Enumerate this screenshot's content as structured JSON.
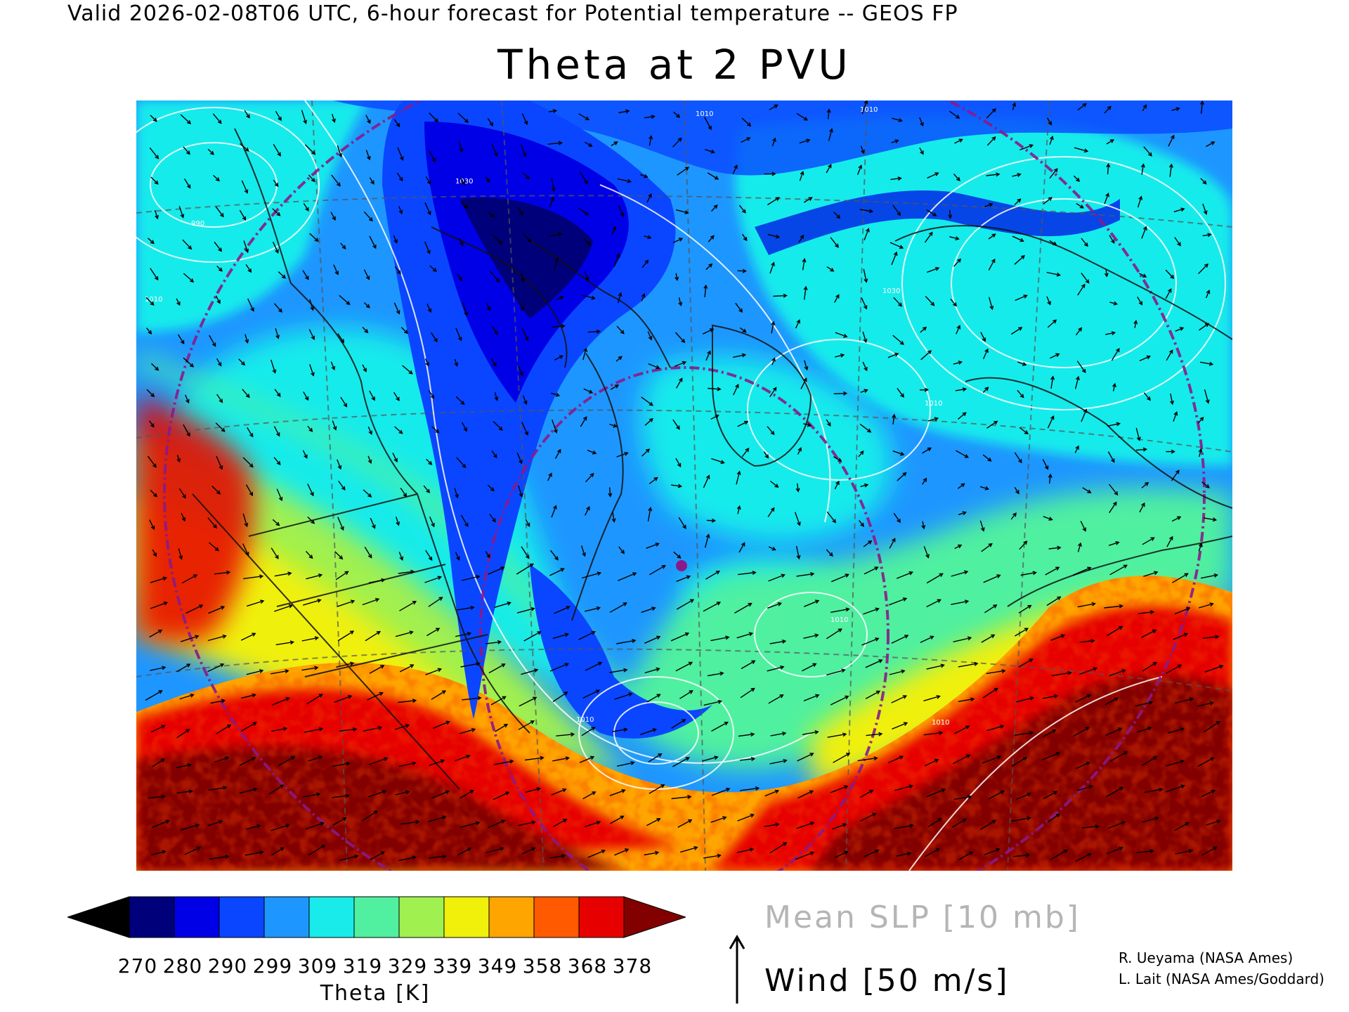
{
  "header": {
    "valid_line": "Valid 2026-02-08T06 UTC, 6-hour forecast for Potential temperature -- GEOS FP",
    "title": "Theta at 2 PVU"
  },
  "map": {
    "variable": "Theta",
    "projection_features": [
      "coastlines",
      "state-borders",
      "dashed-graticule",
      "dash-dot-purple-circles",
      "slp-isobars",
      "wind-arrows"
    ],
    "isobar_labels": [
      "1010",
      "1030",
      "990",
      "1010",
      "1030",
      "1010",
      "1010",
      "1010",
      "1010",
      "1010"
    ],
    "marker_color": "#8a1a8a"
  },
  "colorbar": {
    "colors": [
      "#000000",
      "#00007a",
      "#0000e6",
      "#0a46ff",
      "#1e96ff",
      "#19ebeb",
      "#50f0a0",
      "#a0f050",
      "#f0f00a",
      "#ffa500",
      "#ff5a00",
      "#e60000",
      "#820000"
    ],
    "tick_labels": [
      "270",
      "280",
      "290",
      "299",
      "309",
      "319",
      "329",
      "339",
      "349",
      "358",
      "368",
      "378"
    ],
    "axis_label": "Theta [K]"
  },
  "legend": {
    "slp_label": "Mean SLP [10 mb]",
    "wind_label": "Wind [50 m/s]",
    "slp_color": "#b5b5b5"
  },
  "credits": {
    "line1": "R. Ueyama (NASA Ames)",
    "line2": "L. Lait (NASA Ames/Goddard)"
  }
}
